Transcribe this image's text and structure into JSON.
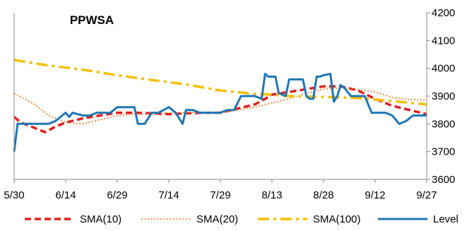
{
  "chart_data": {
    "type": "line",
    "title": "PPWSA",
    "xlabel": "",
    "ylabel": "",
    "x_tick_labels": [
      "5/30",
      "6/14",
      "6/29",
      "7/14",
      "7/29",
      "8/13",
      "8/28",
      "9/12",
      "9/27"
    ],
    "x_tick_days": [
      0,
      15,
      30,
      45,
      60,
      75,
      90,
      105,
      120
    ],
    "ylim": [
      3600,
      4200
    ],
    "y_ticks": [
      3600,
      3700,
      3800,
      3900,
      4000,
      4100,
      4200
    ],
    "y_axis_side": "right",
    "grid": false,
    "legend_position": "bottom",
    "series": [
      {
        "name": "SMA(10)",
        "color": "#e02020",
        "style": "dashed-thick",
        "x": [
          0,
          2,
          5,
          9,
          12,
          15,
          20,
          25,
          30,
          35,
          40,
          45,
          50,
          55,
          60,
          65,
          70,
          73,
          75,
          80,
          85,
          90,
          95,
          100,
          105,
          110,
          115,
          120
        ],
        "y": [
          3825,
          3805,
          3790,
          3770,
          3790,
          3805,
          3820,
          3830,
          3840,
          3840,
          3838,
          3835,
          3838,
          3840,
          3840,
          3855,
          3870,
          3890,
          3905,
          3915,
          3925,
          3935,
          3935,
          3920,
          3890,
          3865,
          3850,
          3835
        ]
      },
      {
        "name": "SMA(20)",
        "color": "#e87722",
        "style": "dotted",
        "x": [
          0,
          3,
          6,
          10,
          15,
          20,
          25,
          30,
          35,
          40,
          45,
          50,
          55,
          60,
          65,
          70,
          75,
          80,
          85,
          90,
          95,
          100,
          105,
          110,
          115,
          120
        ],
        "y": [
          3910,
          3890,
          3870,
          3830,
          3805,
          3800,
          3815,
          3830,
          3835,
          3835,
          3840,
          3840,
          3842,
          3840,
          3850,
          3860,
          3875,
          3890,
          3910,
          3925,
          3930,
          3925,
          3915,
          3895,
          3888,
          3885
        ]
      },
      {
        "name": "SMA(100)",
        "color": "#f5c000",
        "style": "dash-dot",
        "x": [
          0,
          10,
          20,
          30,
          40,
          50,
          60,
          70,
          75,
          80,
          90,
          100,
          110,
          120
        ],
        "y": [
          4030,
          4010,
          3995,
          3975,
          3958,
          3942,
          3920,
          3908,
          3905,
          3900,
          3897,
          3893,
          3882,
          3870
        ]
      },
      {
        "name": "Level",
        "color": "#1f77b4",
        "style": "solid-thick",
        "x": [
          0,
          1,
          2,
          4,
          6,
          8,
          10,
          12,
          13,
          14,
          15,
          16,
          17,
          20,
          22,
          24,
          26,
          28,
          30,
          32,
          35,
          36,
          38,
          40,
          42,
          45,
          47,
          49,
          50,
          52,
          54,
          56,
          58,
          60,
          62,
          64,
          66,
          68,
          70,
          72,
          73,
          74,
          76,
          77,
          79,
          80,
          81,
          82,
          84,
          85,
          86,
          87,
          88,
          89,
          90,
          92,
          93,
          94,
          95,
          96,
          98,
          100,
          102,
          104,
          105,
          106,
          108,
          110,
          112,
          114,
          116,
          118,
          120
        ],
        "y": [
          3700,
          3800,
          3800,
          3800,
          3800,
          3800,
          3800,
          3810,
          3820,
          3830,
          3840,
          3825,
          3840,
          3830,
          3830,
          3840,
          3840,
          3840,
          3860,
          3860,
          3860,
          3800,
          3800,
          3840,
          3840,
          3860,
          3840,
          3800,
          3850,
          3850,
          3840,
          3840,
          3840,
          3840,
          3850,
          3850,
          3900,
          3900,
          3900,
          3890,
          3980,
          3970,
          3970,
          3910,
          3900,
          3960,
          3960,
          3960,
          3960,
          3900,
          3890,
          3890,
          3970,
          3970,
          3975,
          3980,
          3880,
          3900,
          3940,
          3930,
          3900,
          3900,
          3900,
          3840,
          3840,
          3840,
          3840,
          3830,
          3800,
          3810,
          3830,
          3830,
          3830
        ]
      }
    ]
  }
}
